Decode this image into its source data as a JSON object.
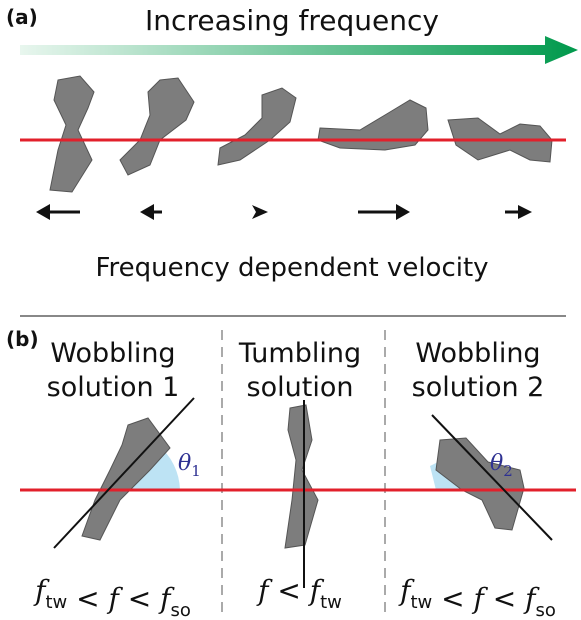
{
  "panel_a": {
    "label": "(a)",
    "top_caption": "Increasing frequency",
    "bottom_caption": "Frequency dependent velocity"
  },
  "panel_b": {
    "label": "(b)",
    "columns": [
      {
        "title_lines": [
          "Wobbling",
          "solution 1"
        ],
        "angle": {
          "symbol": "θ",
          "sub": "1"
        },
        "condition": [
          {
            "italic": "f",
            "sub": "tw"
          },
          {
            "text": " < "
          },
          {
            "italic": "f"
          },
          {
            "text": " < "
          },
          {
            "italic": "f",
            "sub": "so"
          }
        ]
      },
      {
        "title_lines": [
          "Tumbling",
          "solution"
        ],
        "condition": [
          {
            "italic": "f"
          },
          {
            "text": " < "
          },
          {
            "italic": "f",
            "sub": "tw"
          }
        ]
      },
      {
        "title_lines": [
          "Wobbling",
          "solution 2"
        ],
        "angle": {
          "symbol": "θ",
          "sub": "2"
        },
        "condition": [
          {
            "italic": "f",
            "sub": "tw"
          },
          {
            "text": " < "
          },
          {
            "italic": "f"
          },
          {
            "text": " < "
          },
          {
            "italic": "f",
            "sub": "so"
          }
        ]
      }
    ]
  }
}
